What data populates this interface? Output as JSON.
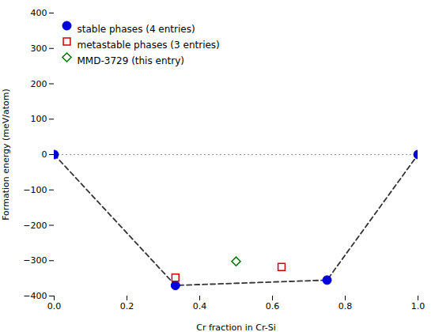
{
  "chart_data": {
    "type": "scatter",
    "xlabel": "Cr fraction in Cr-Si",
    "ylabel": "Formation energy (meV/atom)",
    "xlim": [
      0.0,
      1.0
    ],
    "ylim": [
      -400,
      400
    ],
    "xticks": [
      {
        "value": 0,
        "label": "0.0"
      },
      0.2,
      0.4,
      0.6,
      0.8,
      {
        "value": 1,
        "label": "1.0"
      }
    ],
    "yticks": [
      -400,
      -300,
      -200,
      -100,
      0,
      100,
      200,
      300,
      400
    ],
    "grid": false,
    "legend": "upper left",
    "series": [
      {
        "type": "rule",
        "values": [
          0
        ],
        "color": "#999999",
        "line_style": "dotted"
      },
      {
        "type": "line",
        "x": [
          0.0,
          0.3333,
          0.75,
          1.0
        ],
        "values": [
          0.0,
          -370.0,
          -355.0,
          0.0
        ],
        "color": "#333333",
        "line_style": "dashed"
      },
      {
        "type": "scatter",
        "name": "stable phases (4 entries)",
        "x": [
          0.0,
          0.3333,
          0.75,
          1.0
        ],
        "values": [
          0.0,
          -370.0,
          -355.0,
          0.0
        ],
        "color": "#0000dd",
        "marker": "circle"
      },
      {
        "type": "scatter",
        "name": "metastable phases (3 entries)",
        "x": [
          0.3333,
          0.625
        ],
        "values": [
          -348.0,
          -318.0
        ],
        "color": "#cc0000",
        "marker": "square-open"
      },
      {
        "type": "scatter",
        "name": "MMD-3729 (this entry)",
        "x": [
          0.5
        ],
        "values": [
          -302.0
        ],
        "color": "#007700",
        "marker": "diamond-open"
      }
    ]
  }
}
